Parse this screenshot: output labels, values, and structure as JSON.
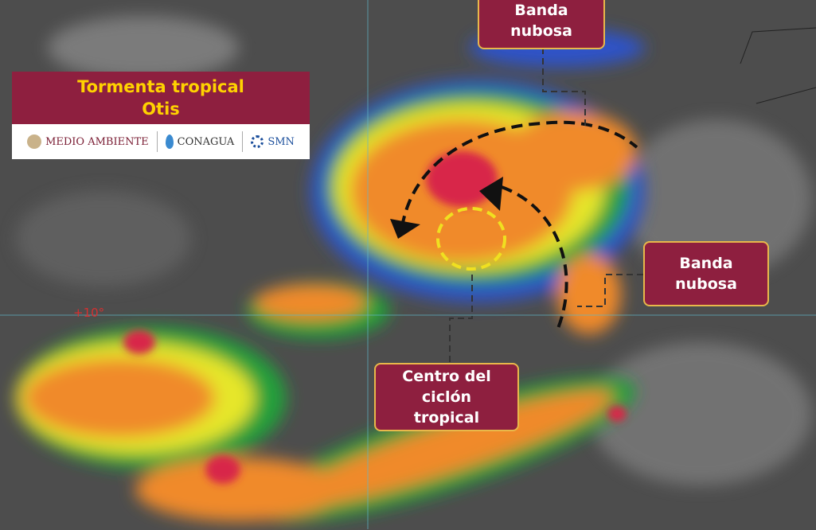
{
  "title": {
    "line1": "Tormenta tropical",
    "line2": "Otis"
  },
  "logos": {
    "medio_ambiente": "MEDIO AMBIENTE",
    "conagua": "CONAGUA",
    "smn": "SMN"
  },
  "labels": {
    "banda_top": {
      "line1": "Banda",
      "line2": "nubosa"
    },
    "banda_right": {
      "line1": "Banda",
      "line2": "nubosa"
    },
    "centro": {
      "line1": "Centro del",
      "line2": "ciclón",
      "line3": "tropical"
    }
  },
  "latitude_label": "+10°",
  "colors": {
    "label_bg": "#8e1f3f",
    "label_border": "#e8b84a",
    "title_text": "#ffd200",
    "gridline": "#5fb8c8"
  }
}
